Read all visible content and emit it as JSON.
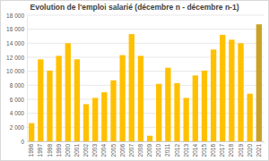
{
  "chart_data": {
    "type": "bar",
    "title": "Evolution de l'emploi salarié (décembre n - décembre n-1)",
    "categories": [
      "1996",
      "1997",
      "1998",
      "1999",
      "2000",
      "2001",
      "2002",
      "2003",
      "2004",
      "2005",
      "2006",
      "2007",
      "2008",
      "2009",
      "2010",
      "2011",
      "2012",
      "2013",
      "2014",
      "2015",
      "2016",
      "2017",
      "2018",
      "2019",
      "2020",
      "2021"
    ],
    "values": [
      2600,
      11700,
      10100,
      12200,
      14000,
      11700,
      5300,
      6200,
      7000,
      8700,
      12300,
      15300,
      12200,
      800,
      8200,
      10500,
      8300,
      6200,
      9400,
      10100,
      13100,
      15200,
      14500,
      14000,
      6800,
      16700
    ],
    "colors": [
      "#ffc000",
      "#ffc000",
      "#ffc000",
      "#ffc000",
      "#ffc000",
      "#ffc000",
      "#ffc000",
      "#ffc000",
      "#ffc000",
      "#ffc000",
      "#ffc000",
      "#ffc000",
      "#ffc000",
      "#ffc000",
      "#ffc000",
      "#ffc000",
      "#ffc000",
      "#ffc000",
      "#ffc000",
      "#ffc000",
      "#ffc000",
      "#ffc000",
      "#ffc000",
      "#ffc000",
      "#ffc000",
      "#c9a227"
    ],
    "ylim": [
      0,
      18000
    ],
    "yticks": [
      0,
      {
        "value": 2000,
        "label": "2 000"
      },
      {
        "value": 4000,
        "label": "4 000"
      },
      {
        "value": 6000,
        "label": "6 000"
      },
      {
        "value": 8000,
        "label": "8 000"
      },
      {
        "value": 10000,
        "label": "10 000"
      },
      {
        "value": 12000,
        "label": "12 000"
      },
      {
        "value": 14000,
        "label": "14 000"
      },
      {
        "value": 16000,
        "label": "16 000"
      },
      {
        "value": 18000,
        "label": "18 000"
      }
    ],
    "grid": true
  }
}
